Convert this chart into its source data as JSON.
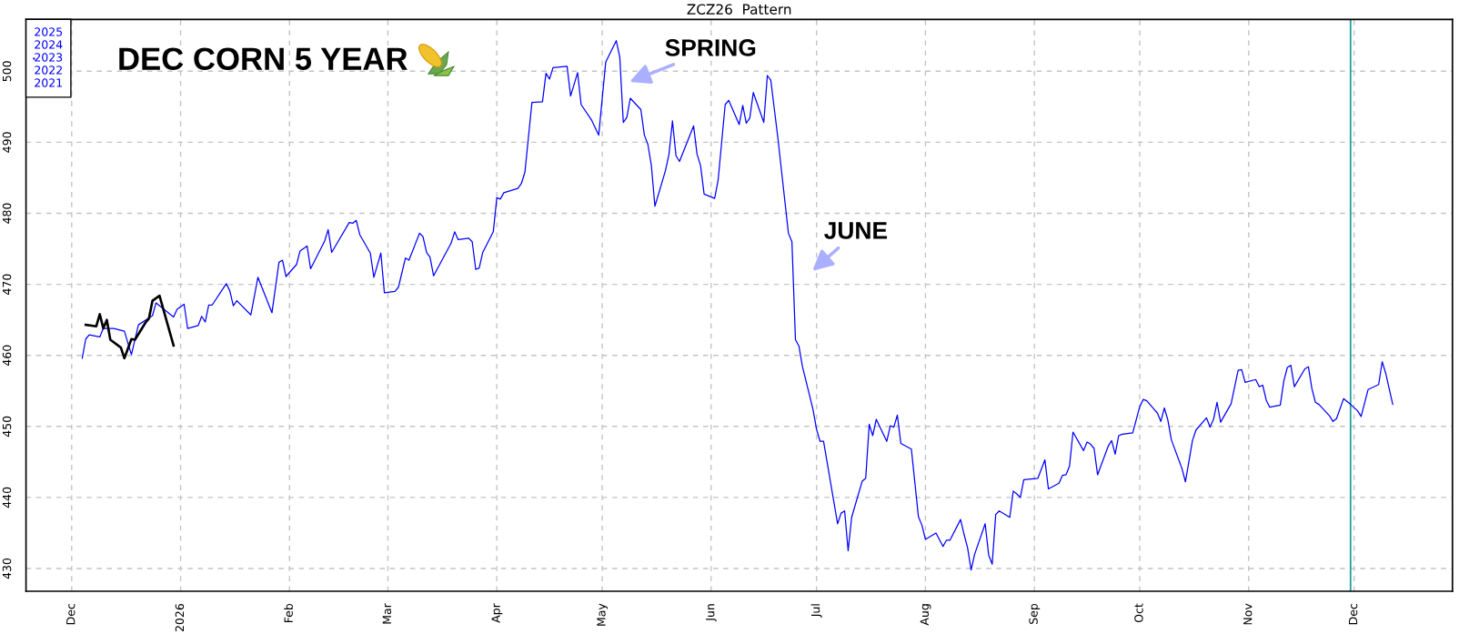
{
  "chart_data": {
    "type": "line",
    "title": "ZCZ26  Pattern",
    "series": [
      {
        "name": "2025\n2024\n2023\n2022\n2021",
        "color": "#0000ff",
        "x": [
          "2025-12-04",
          "2025-12-05",
          "2025-12-06",
          "2025-12-09",
          "2025-12-10",
          "2025-12-13",
          "2025-12-16",
          "2025-12-18",
          "2025-12-20",
          "2025-12-24",
          "2025-12-25",
          "2025-12-30",
          "2025-12-31",
          "2026-01-02",
          "2026-01-03",
          "2026-01-06",
          "2026-01-07",
          "2026-01-08",
          "2026-01-09",
          "2026-01-10",
          "2026-01-14",
          "2026-01-15",
          "2026-01-16",
          "2026-01-17",
          "2026-01-21",
          "2026-01-23",
          "2026-01-27",
          "2026-01-29",
          "2026-01-30",
          "2026-01-31",
          "2026-02-03",
          "2026-02-04",
          "2026-02-06",
          "2026-02-07",
          "2026-02-11",
          "2026-02-12",
          "2026-02-13",
          "2026-02-18",
          "2026-02-19",
          "2026-02-20",
          "2026-02-21",
          "2026-02-24",
          "2026-02-25",
          "2026-02-27",
          "2026-02-28",
          "2026-03-03",
          "2026-03-04",
          "2026-03-06",
          "2026-03-07",
          "2026-03-10",
          "2026-03-11",
          "2026-03-12",
          "2026-03-13",
          "2026-03-14",
          "2026-03-19",
          "2026-03-20",
          "2026-03-21",
          "2026-03-24",
          "2026-03-25",
          "2026-03-26",
          "2026-03-27",
          "2026-03-28",
          "2026-03-31",
          "2026-04-01",
          "2026-04-02",
          "2026-04-03",
          "2026-04-07",
          "2026-04-08",
          "2026-04-09",
          "2026-04-11",
          "2026-04-14",
          "2026-04-15",
          "2026-04-16",
          "2026-04-17",
          "2026-04-21",
          "2026-04-22",
          "2026-04-24",
          "2026-04-25",
          "2026-04-28",
          "2026-04-30",
          "2026-05-02",
          "2026-05-05",
          "2026-05-06",
          "2026-05-07",
          "2026-05-08",
          "2026-05-09",
          "2026-05-12",
          "2026-05-13",
          "2026-05-14",
          "2026-05-15",
          "2026-05-16",
          "2026-05-19",
          "2026-05-20",
          "2026-05-21",
          "2026-05-22",
          "2026-05-23",
          "2026-05-27",
          "2026-05-28",
          "2026-05-29",
          "2026-05-30",
          "2026-06-02",
          "2026-06-03",
          "2026-06-05",
          "2026-06-06",
          "2026-06-09",
          "2026-06-10",
          "2026-06-11",
          "2026-06-12",
          "2026-06-13",
          "2026-06-16",
          "2026-06-17",
          "2026-06-18",
          "2026-06-20",
          "2026-06-23",
          "2026-06-24",
          "2026-06-25",
          "2026-06-26",
          "2026-06-27",
          "2026-06-30",
          "2026-07-01",
          "2026-07-02",
          "2026-07-03",
          "2026-07-07",
          "2026-07-08",
          "2026-07-09",
          "2026-07-10",
          "2026-07-11",
          "2026-07-14",
          "2026-07-15",
          "2026-07-16",
          "2026-07-17",
          "2026-07-18",
          "2026-07-21",
          "2026-07-22",
          "2026-07-23",
          "2026-07-24",
          "2026-07-25",
          "2026-07-28",
          "2026-07-30",
          "2026-07-31",
          "2026-08-01",
          "2026-08-04",
          "2026-08-06",
          "2026-08-07",
          "2026-08-08",
          "2026-08-11",
          "2026-08-12",
          "2026-08-13",
          "2026-08-14",
          "2026-08-15",
          "2026-08-18",
          "2026-08-19",
          "2026-08-20",
          "2026-08-21",
          "2026-08-22",
          "2026-08-25",
          "2026-08-26",
          "2026-08-27",
          "2026-08-28",
          "2026-08-29",
          "2026-09-02",
          "2026-09-04",
          "2026-09-05",
          "2026-09-08",
          "2026-09-09",
          "2026-09-10",
          "2026-09-11",
          "2026-09-12",
          "2026-09-15",
          "2026-09-16",
          "2026-09-17",
          "2026-09-18",
          "2026-09-19",
          "2026-09-22",
          "2026-09-23",
          "2026-09-24",
          "2026-09-25",
          "2026-09-26",
          "2026-09-29",
          "2026-10-01",
          "2026-10-02",
          "2026-10-03",
          "2026-10-06",
          "2026-10-07",
          "2026-10-08",
          "2026-10-09",
          "2026-10-10",
          "2026-10-13",
          "2026-10-14",
          "2026-10-16",
          "2026-10-17",
          "2026-10-20",
          "2026-10-21",
          "2026-10-22",
          "2026-10-23",
          "2026-10-24",
          "2026-10-27",
          "2026-10-29",
          "2026-10-30",
          "2026-10-31",
          "2026-11-03",
          "2026-11-04",
          "2026-11-05",
          "2026-11-06",
          "2026-11-07",
          "2026-11-10",
          "2026-11-11",
          "2026-11-12",
          "2026-11-13",
          "2026-11-14",
          "2026-11-17",
          "2026-11-18",
          "2026-11-19",
          "2026-11-20",
          "2026-11-21",
          "2026-11-24",
          "2026-11-25",
          "2026-11-26",
          "2026-11-28",
          "2026-11-30",
          "2026-12-02",
          "2026-12-03",
          "2026-12-05",
          "2026-12-08",
          "2026-12-09",
          "2026-12-10",
          "2026-12-11",
          "2026-12-12"
        ],
        "values": [
          459.6,
          462.3,
          462.9,
          462.6,
          463.8,
          463.8,
          463.4,
          460.1,
          464.3,
          465.6,
          467.4,
          465.4,
          466.5,
          467.2,
          463.8,
          464.2,
          465.5,
          464.7,
          467.1,
          467.1,
          470.1,
          469.1,
          467.0,
          467.7,
          465.7,
          471.0,
          466.0,
          473.1,
          473.4,
          471.1,
          472.8,
          474.7,
          475.4,
          472.2,
          476.1,
          477.7,
          474.5,
          478.7,
          478.6,
          479.0,
          477.0,
          474.4,
          471.0,
          474.4,
          468.8,
          469.0,
          469.6,
          473.7,
          473.4,
          477.2,
          476.7,
          474.5,
          473.8,
          471.2,
          475.8,
          477.4,
          476.3,
          476.5,
          476.0,
          472.1,
          472.3,
          474.5,
          477.4,
          482.2,
          482.0,
          482.9,
          483.5,
          484.2,
          485.8,
          495.6,
          495.7,
          499.7,
          498.9,
          500.5,
          500.7,
          496.5,
          499.8,
          495.3,
          493.1,
          491.0,
          501.3,
          504.3,
          502.0,
          492.8,
          493.5,
          496.2,
          494.6,
          491.0,
          489.7,
          486.7,
          481.0,
          486.0,
          488.3,
          493.0,
          488.1,
          487.3,
          492.3,
          488.3,
          486.7,
          482.7,
          482.1,
          484.7,
          495.3,
          495.9,
          492.5,
          495.2,
          492.7,
          493.4,
          497.0,
          492.8,
          499.4,
          498.7,
          490.6,
          477.2,
          476.0,
          462.2,
          461.3,
          458.4,
          452.4,
          449.6,
          447.9,
          447.9,
          436.3,
          437.8,
          438.1,
          432.5,
          437.2,
          442.3,
          442.7,
          450.3,
          448.7,
          451.0,
          447.9,
          450.1,
          449.9,
          451.6,
          447.6,
          446.8,
          437.3,
          436.1,
          434.1,
          435.0,
          433.1,
          434.0,
          434.0,
          436.9,
          434.8,
          432.9,
          429.8,
          432.0,
          436.3,
          431.9,
          430.6,
          437.6,
          438.1,
          437.2,
          440.9,
          440.5,
          440.0,
          442.5,
          442.7,
          445.3,
          441.2,
          442.0,
          443.1,
          443.2,
          444.4,
          449.2,
          446.6,
          447.8,
          447.5,
          446.9,
          443.2,
          447.2,
          448.0,
          446.1,
          448.7,
          448.9,
          449.1,
          452.8,
          453.8,
          453.6,
          451.9,
          450.7,
          452.6,
          450.9,
          448.1,
          444.1,
          442.2,
          448.0,
          449.5,
          451.2,
          449.9,
          451.0,
          453.4,
          450.6,
          453.2,
          457.9,
          458.0,
          456.2,
          456.6,
          455.6,
          455.8,
          453.7,
          452.7,
          453.0,
          456.4,
          458.3,
          458.6,
          455.6,
          458.1,
          458.4,
          455.3,
          453.4,
          453.1,
          451.5,
          450.7,
          451.1,
          453.9,
          453.1,
          452.2,
          451.4,
          455.2,
          455.9,
          459.1,
          457.5,
          455.3,
          453.1
        ]
      },
      {
        "color": "#000000",
        "x": [
          "2025-12-05",
          "2025-12-08",
          "2025-12-09",
          "2025-12-10",
          "2025-12-11",
          "2025-12-12",
          "2025-12-15",
          "2025-12-16",
          "2025-12-18",
          "2025-12-19",
          "2025-12-22",
          "2025-12-23",
          "2025-12-24",
          "2025-12-26",
          "2025-12-30"
        ],
        "values": [
          464.3,
          464.1,
          465.8,
          463.8,
          465.0,
          462.2,
          461.1,
          459.6,
          462.3,
          462.2,
          464.6,
          465.2,
          467.7,
          468.4,
          461.4
        ]
      }
    ],
    "xlim": [
      "2025-11-18",
      "2026-12-29"
    ],
    "xticks": [
      {
        "value": "2025-12-01",
        "label": "Dec"
      },
      {
        "value": "2026-01-01",
        "label": "2026"
      },
      {
        "value": "2026-02-01",
        "label": "Feb"
      },
      {
        "value": "2026-03-01",
        "label": "Mar"
      },
      {
        "value": "2026-04-01",
        "label": "Apr"
      },
      {
        "value": "2026-05-01",
        "label": "May"
      },
      {
        "value": "2026-06-01",
        "label": "Jun"
      },
      {
        "value": "2026-07-01",
        "label": "Jul"
      },
      {
        "value": "2026-08-01",
        "label": "Aug"
      },
      {
        "value": "2026-09-01",
        "label": "Sep"
      },
      {
        "value": "2026-10-01",
        "label": "Oct"
      },
      {
        "value": "2026-11-01",
        "label": "Nov"
      },
      {
        "value": "2026-12-01",
        "label": "Dec"
      }
    ],
    "ylim": [
      426.8,
      507.3
    ],
    "yticks": [
      430,
      440,
      450,
      460,
      470,
      480,
      490,
      500
    ],
    "grid": true,
    "legend": "top left",
    "ref_lines": [
      {
        "axis": "x",
        "value": "2026-11-30",
        "color": "#20a0a0"
      }
    ],
    "annotations": [
      "DEC CORN 5 YEAR",
      "SPRING",
      "JUNE"
    ]
  }
}
